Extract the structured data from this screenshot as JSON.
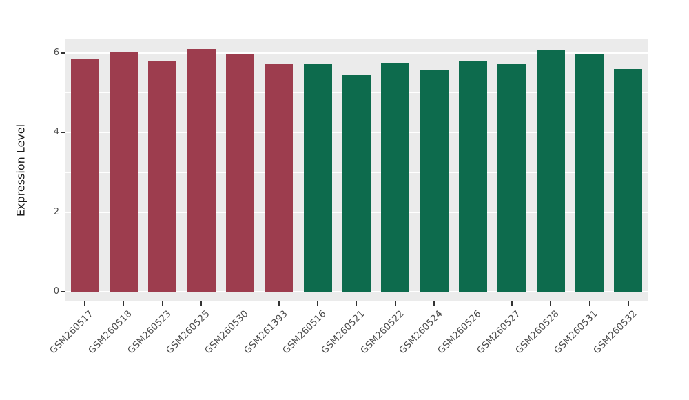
{
  "chart_data": {
    "type": "bar",
    "title": "",
    "xlabel": "",
    "ylabel": "Expression Level",
    "categories": [
      "GSM260517",
      "GSM260518",
      "GSM260523",
      "GSM260525",
      "GSM260530",
      "GSM261393",
      "GSM260516",
      "GSM260521",
      "GSM260522",
      "GSM260524",
      "GSM260526",
      "GSM260527",
      "GSM260528",
      "GSM260531",
      "GSM260532"
    ],
    "values": [
      5.85,
      6.02,
      5.82,
      6.1,
      5.98,
      5.72,
      5.72,
      5.45,
      5.75,
      5.57,
      5.8,
      5.73,
      6.08,
      5.98,
      5.6
    ],
    "bar_colors": [
      "#9d3d4e",
      "#9d3d4e",
      "#9d3d4e",
      "#9d3d4e",
      "#9d3d4e",
      "#9d3d4e",
      "#0d6b4d",
      "#0d6b4d",
      "#0d6b4d",
      "#0d6b4d",
      "#0d6b4d",
      "#0d6b4d",
      "#0d6b4d",
      "#0d6b4d",
      "#0d6b4d"
    ],
    "ylim": [
      0,
      6.35
    ],
    "yticks": [
      0,
      2,
      4,
      6
    ],
    "ytick_labels": [
      "0",
      "2",
      "4",
      "6"
    ],
    "grid": "on",
    "legend": "none",
    "panel_background": "#ebebeb",
    "grid_color": "#ffffff",
    "tick_label_color": "#4d4d4d"
  }
}
